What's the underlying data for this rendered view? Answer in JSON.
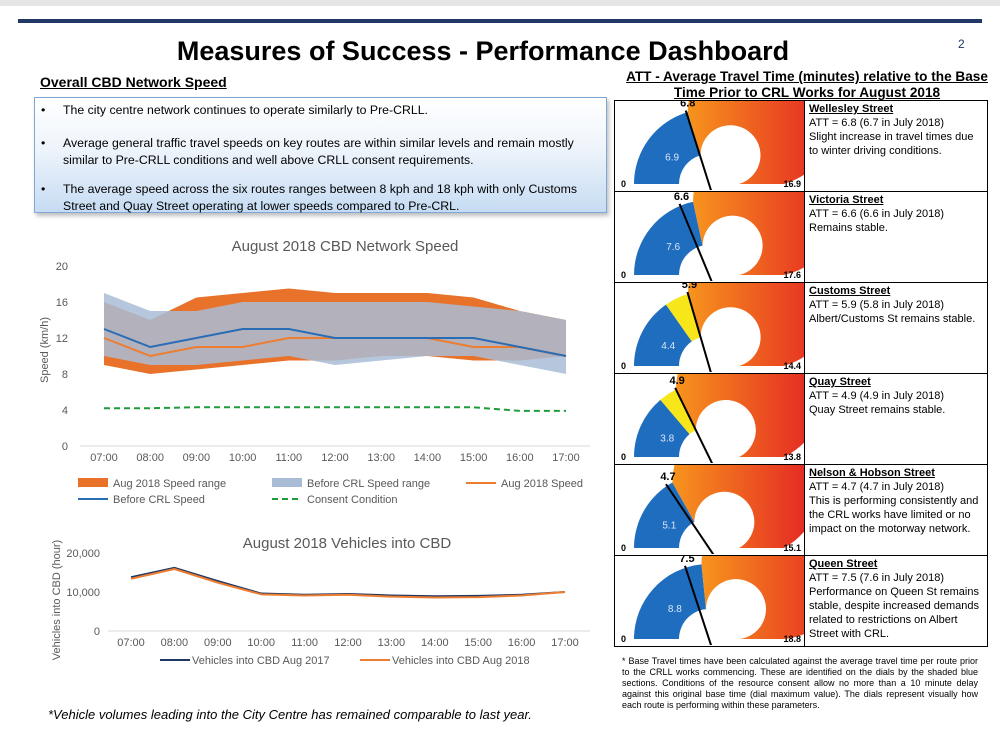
{
  "header": {
    "title": "Measures of Success - Performance Dashboard",
    "page_number": "2"
  },
  "summary": {
    "heading": "Overall CBD Network Speed",
    "bullets": [
      "The city centre network continues to operate similarly to Pre-CRLL.",
      "Average general traffic travel speeds on key routes are within similar levels and remain mostly similar to Pre-CRLL conditions and well above CRLL consent requirements.",
      "The average speed across the six routes ranges between 8 kph and 18 kph with only Customs Street and Quay Street operating at lower speeds compared to Pre-CRL."
    ]
  },
  "colors": {
    "aug_range": "#e8722a",
    "before_range": "#a9bcd6",
    "before_speed": "#2a6db5",
    "aug_speed": "#ed7d31",
    "consent": "#1e9c3c",
    "veh_2017": "#1f3864",
    "veh_2018": "#ed7d31",
    "gauge_blue": "#1f6dbf",
    "gauge_yellow": "#f6e61a",
    "gauge_orange": "#f7941d",
    "gauge_red": "#e31e24"
  },
  "chart_data": [
    {
      "type": "area",
      "title": "August 2018 CBD Network Speed",
      "xlabel": "",
      "ylabel": "Speed (km/h)",
      "x": [
        "07:00",
        "08:00",
        "09:00",
        "10:00",
        "11:00",
        "12:00",
        "13:00",
        "14:00",
        "15:00",
        "16:00",
        "17:00"
      ],
      "ylim": [
        0,
        20
      ],
      "yticks": [
        "0",
        "4",
        "8",
        "12",
        "16",
        "20"
      ],
      "grid": false,
      "legend_position": "bottom",
      "series": [
        {
          "name": "Aug 2018 Speed range",
          "kind": "range",
          "low": [
            9,
            8,
            8.5,
            9,
            9.5,
            9.5,
            10,
            10,
            9.5,
            9.5,
            10
          ],
          "high": [
            16,
            14,
            16.5,
            17,
            17.5,
            17,
            17,
            17,
            16.5,
            15,
            14
          ]
        },
        {
          "name": "Before CRL Speed range",
          "kind": "range",
          "low": [
            10,
            9,
            9,
            9.5,
            10,
            9,
            9.5,
            10,
            10,
            9,
            8
          ],
          "high": [
            17,
            15,
            15,
            16,
            16,
            16,
            16,
            16,
            15.5,
            15,
            14
          ]
        },
        {
          "name": "Aug 2018 Speed",
          "kind": "line",
          "values": [
            12,
            10,
            11,
            11,
            12,
            12,
            12,
            12,
            11,
            11,
            10
          ]
        },
        {
          "name": "Before CRL Speed",
          "kind": "line",
          "values": [
            13,
            11,
            12,
            13,
            13,
            12,
            12,
            12,
            12,
            11,
            10
          ]
        },
        {
          "name": "Consent Condition",
          "kind": "dashed",
          "values": [
            4.2,
            4.2,
            4.3,
            4.3,
            4.3,
            4.3,
            4.3,
            4.3,
            4.3,
            3.9,
            3.9
          ]
        }
      ]
    },
    {
      "type": "line",
      "title": "August 2018 Vehicles into CBD",
      "xlabel": "",
      "ylabel": "Vehicles into CBD (hour)",
      "x": [
        "07:00",
        "08:00",
        "09:00",
        "10:00",
        "11:00",
        "12:00",
        "13:00",
        "14:00",
        "15:00",
        "16:00",
        "17:00"
      ],
      "ylim": [
        0,
        20000
      ],
      "yticks": [
        "0",
        "10,000",
        "20,000"
      ],
      "grid": false,
      "legend_position": "bottom",
      "series": [
        {
          "name": "Vehicles into CBD Aug 2017",
          "values": [
            13800,
            16200,
            12800,
            9600,
            9300,
            9500,
            9100,
            8900,
            9000,
            9300,
            10000
          ]
        },
        {
          "name": "Vehicles into CBD Aug 2018",
          "values": [
            13400,
            15900,
            12400,
            9400,
            9100,
            9300,
            8800,
            8600,
            8700,
            9100,
            10000
          ]
        }
      ]
    },
    {
      "type": "gauge",
      "title": "ATT - Average Travel Time (minutes) relative to the Base Time Prior to CRL Works for August 2018",
      "gauges": [
        {
          "min": 0,
          "max": 16.9,
          "base": 6.9,
          "value": 6.8
        },
        {
          "min": 0,
          "max": 17.6,
          "base": 7.6,
          "value": 6.6
        },
        {
          "min": 0,
          "max": 14.4,
          "base": 4.4,
          "value": 5.9
        },
        {
          "min": 0,
          "max": 13.8,
          "base": 3.8,
          "value": 4.9
        },
        {
          "min": 0,
          "max": 15.1,
          "base": 5.1,
          "value": 4.7
        },
        {
          "min": 0,
          "max": 18.8,
          "base": 8.8,
          "value": 7.5
        }
      ]
    }
  ],
  "gauge_labels": [
    {
      "min": "0",
      "max": "16.9",
      "base": "6.9",
      "value": "6.8"
    },
    {
      "min": "0",
      "max": "17.6",
      "base": "7.6",
      "value": "6.6"
    },
    {
      "min": "0",
      "max": "14.4",
      "base": "4.4",
      "value": "5.9"
    },
    {
      "min": "0",
      "max": "13.8",
      "base": "3.8",
      "value": "4.9"
    },
    {
      "min": "0",
      "max": "15.1",
      "base": "5.1",
      "value": "4.7"
    },
    {
      "min": "0",
      "max": "18.8",
      "base": "8.8",
      "value": "7.5"
    }
  ],
  "routes": [
    {
      "name": "Wellesley Street",
      "att": "ATT = 6.8 (6.7 in July 2018)",
      "note": "Slight increase in travel times due to winter driving conditions."
    },
    {
      "name": "Victoria Street",
      "att": "ATT = 6.6 (6.6 in July 2018)",
      "note": "Remains stable."
    },
    {
      "name": "Customs Street",
      "att": "ATT = 5.9 (5.8 in July 2018)",
      "note": "Albert/Customs St remains stable."
    },
    {
      "name": "Quay Street",
      "att": "ATT = 4.9 (4.9 in July 2018)",
      "note": "Quay Street remains stable."
    },
    {
      "name": "Nelson & Hobson Street",
      "att": "ATT = 4.7 (4.7 in July 2018)",
      "note": "This is performing consistently and the CRL works have limited or no impact on the motorway network."
    },
    {
      "name": "Queen Street",
      "att": "ATT = 7.5 (7.6 in July 2018)",
      "note": "Performance on Queen St remains stable, despite increased demands related to restrictions on Albert Street with CRL."
    }
  ],
  "footnotes": {
    "left": "*Vehicle volumes leading into the City Centre has remained comparable to last year.",
    "right": "* Base Travel times have been calculated against the average travel time per route prior to the CRLL works commencing. These are identified on the dials by the shaded blue sections. Conditions of the resource consent allow no more than a 10 minute delay against this original base time (dial maximum value). The dials represent visually how each route is performing within these parameters."
  }
}
